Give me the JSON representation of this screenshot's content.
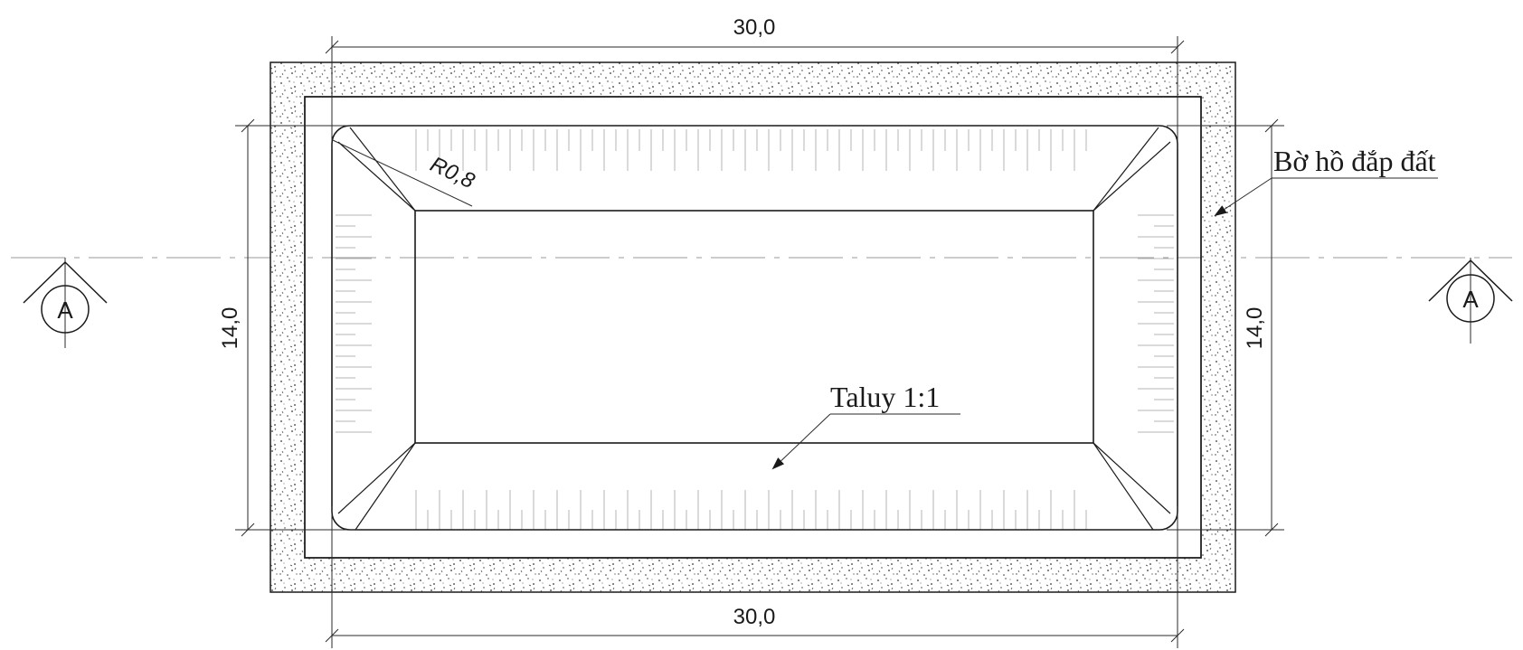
{
  "dimensions": {
    "top_width": "30,0",
    "bottom_width": "30,0",
    "left_height": "14,0",
    "right_height": "14,0",
    "corner_radius": "R0,8"
  },
  "labels": {
    "embankment": "Bờ hồ đắp đất",
    "slope": "Taluy 1:1"
  },
  "section_markers": {
    "left": "A",
    "right": "A"
  }
}
